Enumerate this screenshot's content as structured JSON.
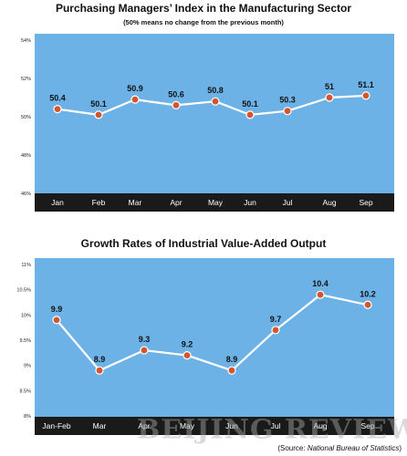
{
  "charts": [
    {
      "title": "Purchasing Managers’ Index in the Manufacturing Sector",
      "subtitle": "(50% means no change from the previous month)"
    },
    {
      "title": "Growth Rates of Industrial Value-Added Output"
    }
  ],
  "chart_data": [
    {
      "type": "line",
      "title": "Purchasing Managers’ Index in the Manufacturing Sector",
      "subtitle": "(50% means no change from the previous month)",
      "categories": [
        "Jan",
        "Feb",
        "Mar",
        "Apr",
        "May",
        "Jun",
        "Jul",
        "Aug",
        "Sep"
      ],
      "values": [
        50.4,
        50.1,
        50.9,
        50.6,
        50.8,
        50.1,
        50.3,
        51,
        51.1
      ],
      "data_labels": [
        "50.4",
        "50.1",
        "50.9",
        "50.6",
        "50.8",
        "50.1",
        "50.3",
        "51",
        "51.1"
      ],
      "y_ticks": [
        46,
        48,
        50,
        52,
        54
      ],
      "y_tick_labels": [
        "46%",
        "48%",
        "50%",
        "52%",
        "54%"
      ],
      "ylim": [
        46,
        54
      ],
      "grid": false
    },
    {
      "type": "line",
      "title": "Growth Rates of Industrial Value-Added Output",
      "categories": [
        "Jan-Feb",
        "Mar",
        "Apr",
        "May",
        "Jun",
        "Jul",
        "Aug",
        "Sep"
      ],
      "values": [
        9.9,
        8.9,
        9.3,
        9.2,
        8.9,
        9.7,
        10.4,
        10.2
      ],
      "data_labels": [
        "9.9",
        "8.9",
        "9.3",
        "9.2",
        "8.9",
        "9.7",
        "10.4",
        "10.2"
      ],
      "y_ticks": [
        8,
        8.5,
        9,
        9.5,
        10,
        10.5,
        11
      ],
      "y_tick_labels": [
        "8%",
        "8.5%",
        "9%",
        "9.5%",
        "10%",
        "10.5%",
        "11%"
      ],
      "ylim": [
        8,
        11
      ],
      "grid": false
    }
  ],
  "watermark": "BEIJING REVIEW.com.cn",
  "source": {
    "prefix": "(Source: ",
    "name": "National Bureau of Statistics",
    "suffix": ")"
  },
  "colors": {
    "plot_background": "#6db2e6",
    "category_band": "#1a1a1a",
    "line": "#ffffff",
    "marker_fill": "#d2552c",
    "marker_stroke": "#ffffff"
  }
}
